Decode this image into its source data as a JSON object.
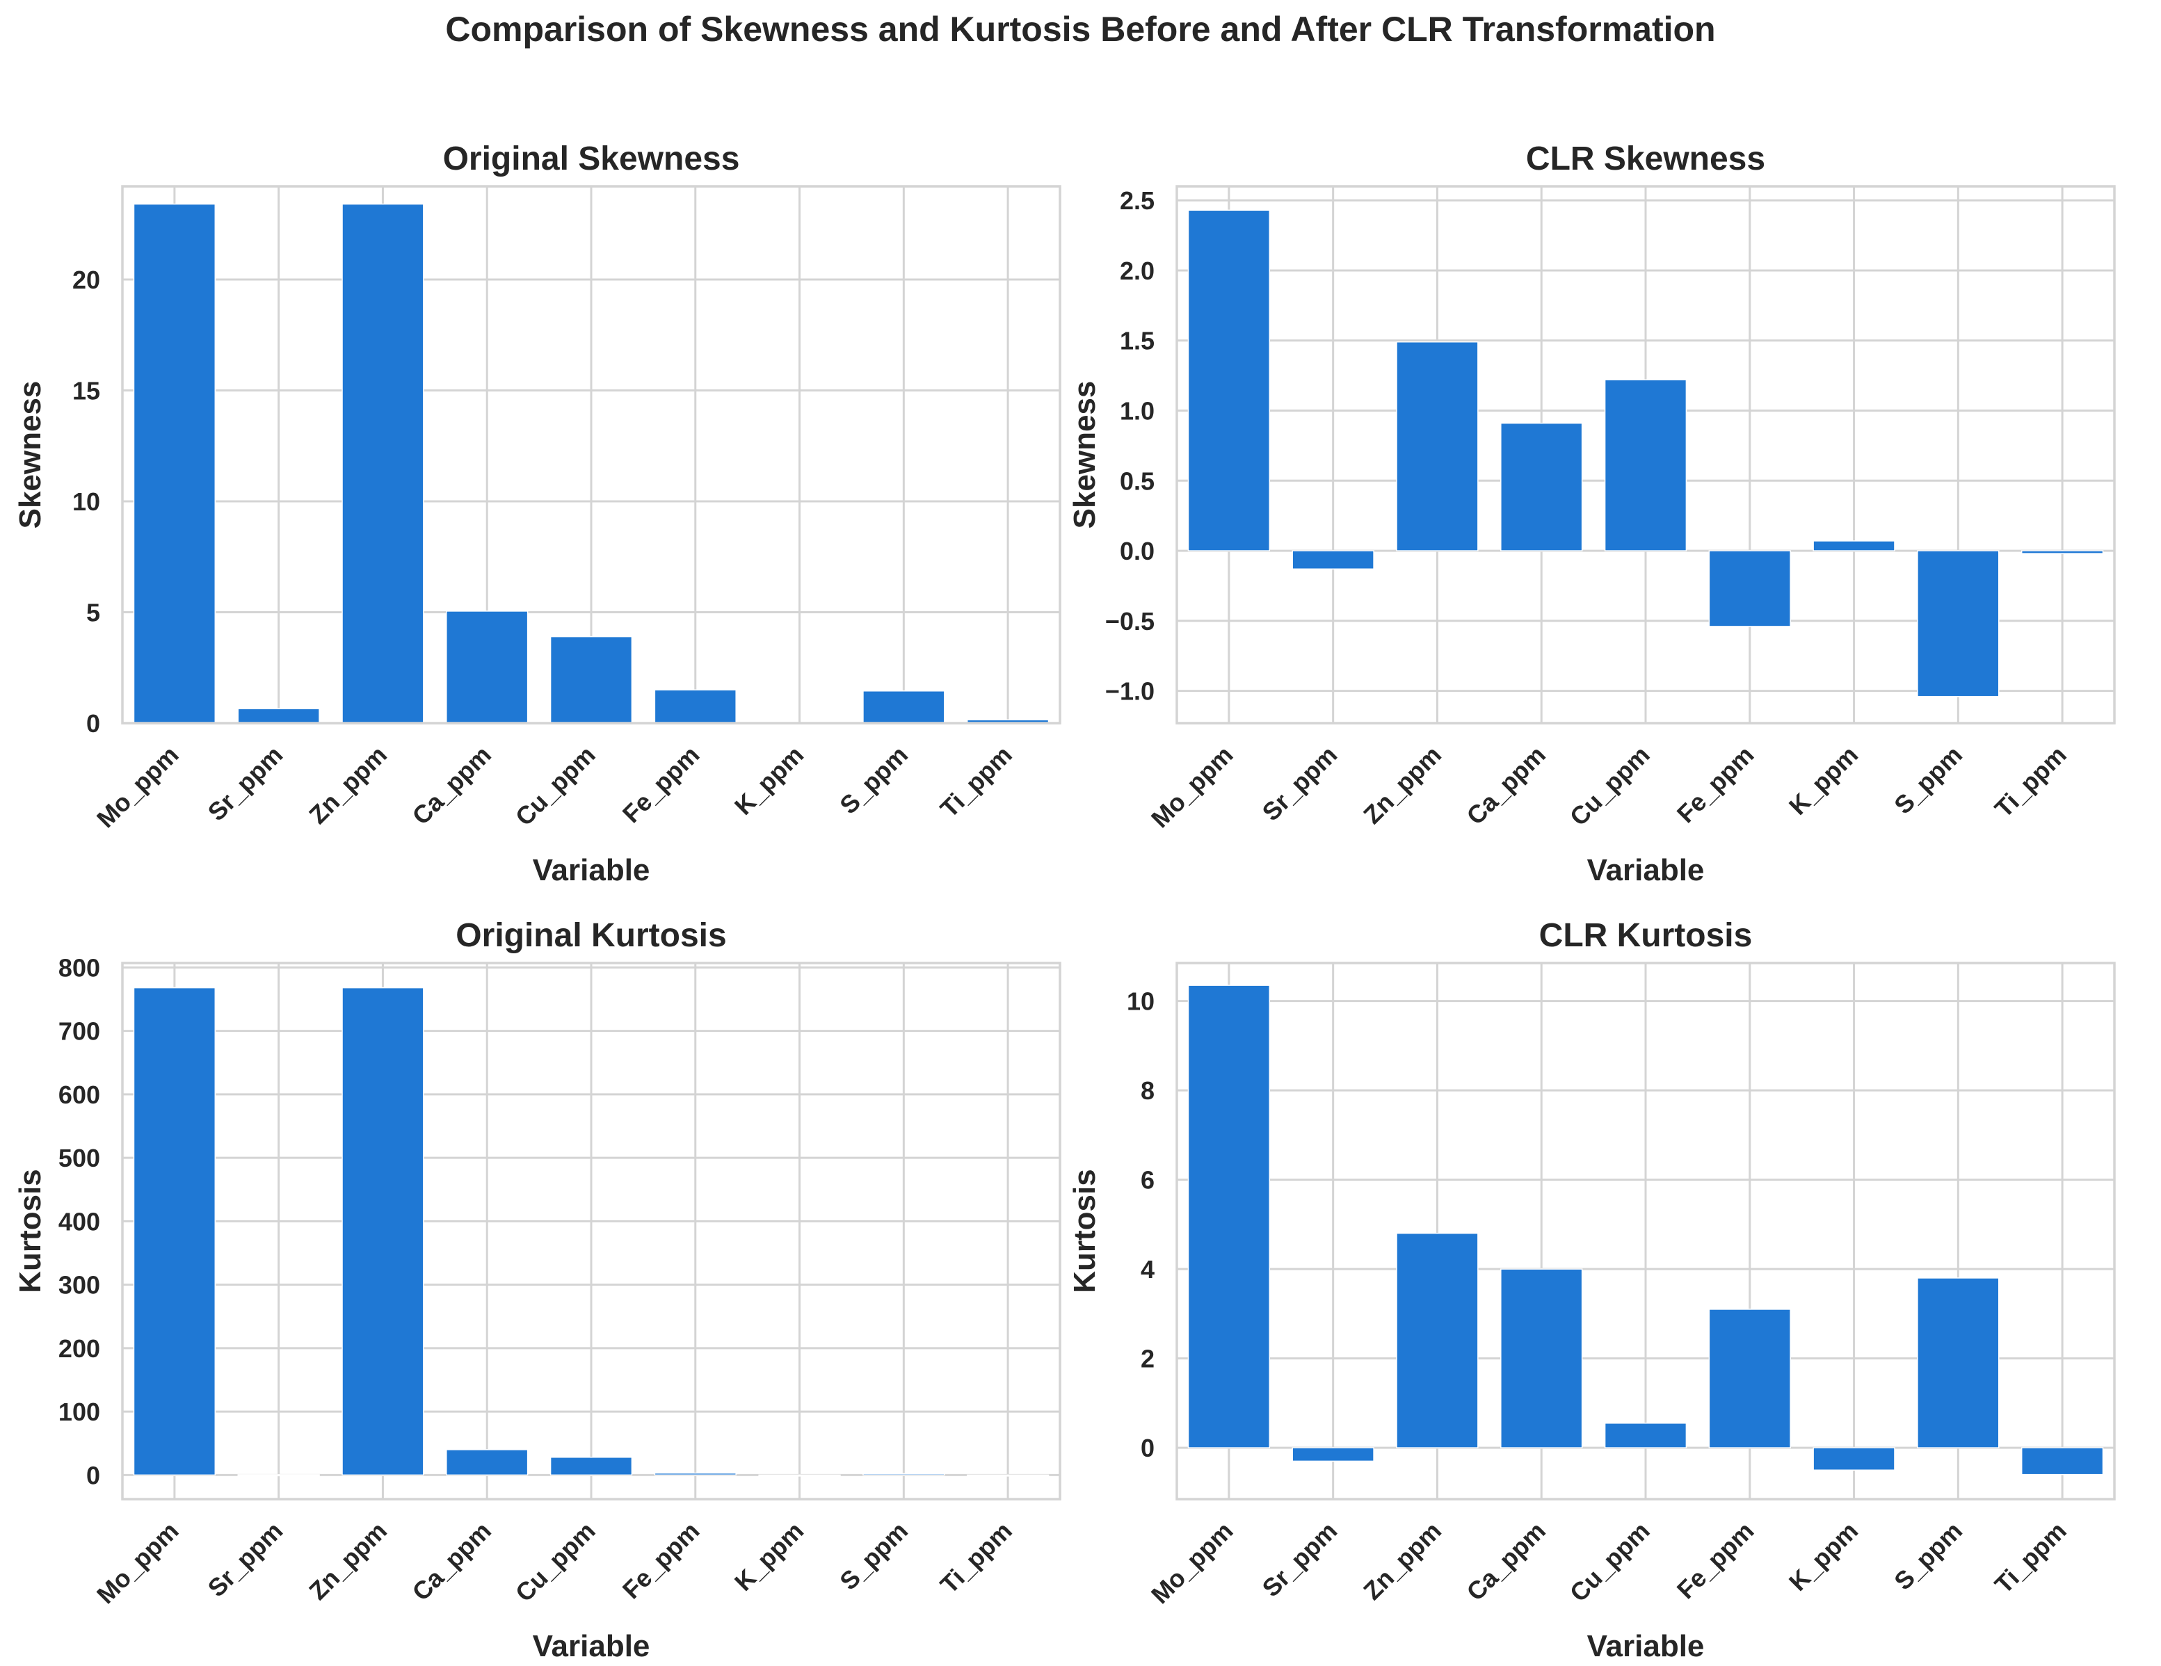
{
  "figure": {
    "suptitle": "Comparison of Skewness and Kurtosis Before and After CLR Transformation"
  },
  "colors": {
    "bar": "#1f78d4",
    "grid": "#d4d4d4",
    "frame": "#d4d4d4",
    "text": "#262626",
    "background": "#ffffff"
  },
  "chart_data": [
    {
      "id": "original-skewness",
      "type": "bar",
      "title": "Original Skewness",
      "xlabel": "Variable",
      "ylabel": "Skewness",
      "categories": [
        "Mo_ppm",
        "Sr_ppm",
        "Zn_ppm",
        "Ca_ppm",
        "Cu_ppm",
        "Fe_ppm",
        "K_ppm",
        "S_ppm",
        "Ti_ppm"
      ],
      "values": [
        23.4,
        0.65,
        23.4,
        5.05,
        3.9,
        1.5,
        0.0,
        1.45,
        0.15
      ],
      "ylim": [
        0,
        24.2
      ],
      "yticks": [
        0,
        5,
        10,
        15,
        20
      ],
      "ytick_labels": [
        "0",
        "5",
        "10",
        "15",
        "20"
      ],
      "grid": true
    },
    {
      "id": "clr-skewness",
      "type": "bar",
      "title": "CLR Skewness",
      "xlabel": "Variable",
      "ylabel": "Skewness",
      "categories": [
        "Mo_ppm",
        "Sr_ppm",
        "Zn_ppm",
        "Ca_ppm",
        "Cu_ppm",
        "Fe_ppm",
        "K_ppm",
        "S_ppm",
        "Ti_ppm"
      ],
      "values": [
        2.43,
        -0.13,
        1.49,
        0.91,
        1.22,
        -0.54,
        0.07,
        -1.04,
        -0.02
      ],
      "ylim": [
        -1.23,
        2.6
      ],
      "yticks": [
        -1.0,
        -0.5,
        0.0,
        0.5,
        1.0,
        1.5,
        2.0,
        2.5
      ],
      "ytick_labels": [
        "−1.0",
        "−0.5",
        "0.0",
        "0.5",
        "1.0",
        "1.5",
        "2.0",
        "2.5"
      ],
      "grid": true
    },
    {
      "id": "original-kurtosis",
      "type": "bar",
      "title": "Original Kurtosis",
      "xlabel": "Variable",
      "ylabel": "Kurtosis",
      "categories": [
        "Mo_ppm",
        "Sr_ppm",
        "Zn_ppm",
        "Ca_ppm",
        "Cu_ppm",
        "Fe_ppm",
        "K_ppm",
        "S_ppm",
        "Ti_ppm"
      ],
      "values": [
        768,
        0.5,
        768,
        40,
        28,
        3,
        -1,
        2,
        -1
      ],
      "ylim": [
        -38,
        807
      ],
      "yticks": [
        0,
        100,
        200,
        300,
        400,
        500,
        600,
        700,
        800
      ],
      "ytick_labels": [
        "0",
        "100",
        "200",
        "300",
        "400",
        "500",
        "600",
        "700",
        "800"
      ],
      "grid": true
    },
    {
      "id": "clr-kurtosis",
      "type": "bar",
      "title": "CLR Kurtosis",
      "xlabel": "Variable",
      "ylabel": "Kurtosis",
      "categories": [
        "Mo_ppm",
        "Sr_ppm",
        "Zn_ppm",
        "Ca_ppm",
        "Cu_ppm",
        "Fe_ppm",
        "K_ppm",
        "S_ppm",
        "Ti_ppm"
      ],
      "values": [
        10.35,
        -0.3,
        4.8,
        4.0,
        0.55,
        3.1,
        -0.5,
        3.8,
        -0.6
      ],
      "ylim": [
        -1.15,
        10.85
      ],
      "yticks": [
        0,
        2,
        4,
        6,
        8,
        10
      ],
      "ytick_labels": [
        "0",
        "2",
        "4",
        "6",
        "8",
        "10"
      ],
      "grid": true
    }
  ]
}
